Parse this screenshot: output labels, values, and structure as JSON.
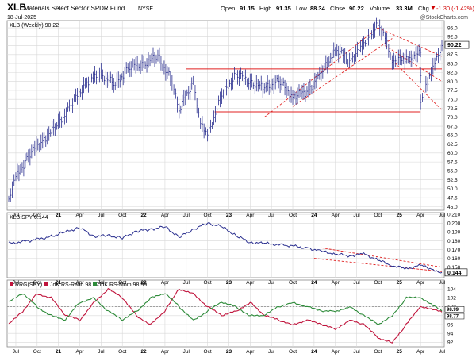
{
  "header": {
    "symbol": "XLB",
    "name": "Materials Select Sector SPDR Fund",
    "exchange": "NYSE",
    "date": "18-Jul-2025",
    "open_label": "Open",
    "open": "91.15",
    "high_label": "High",
    "high": "91.35",
    "low_label": "Low",
    "low": "88.34",
    "close_label": "Close",
    "close": "90.22",
    "volume_label": "Volume",
    "volume": "33.3M",
    "chg_label": "Chg",
    "chg": "-1.30 (-1.42%)",
    "chg_icon": "down-arrow-icon",
    "watermark": "@StockCharts.com"
  },
  "colors": {
    "price": "#2a2f8f",
    "trend": "#e02020",
    "rs_ratio": "#c0143c",
    "rs_mom": "#2e8b3a",
    "grid": "#d8d8d8"
  },
  "chart_data": [
    {
      "type": "line",
      "panel": "price",
      "legend": "XLB (Weekly) 90.22",
      "last_value": "90.22",
      "ylim": [
        44,
        97
      ],
      "y_ticks": [
        "95.0",
        "92.5",
        "90.0",
        "87.5",
        "85.0",
        "82.5",
        "80.0",
        "77.5",
        "75.0",
        "72.5",
        "70.0",
        "67.5",
        "65.0",
        "62.5",
        "60.0",
        "57.5",
        "55.0",
        "52.5",
        "50.0",
        "47.5",
        "45.0"
      ],
      "x_start": "2020-06",
      "x_end": "2025-07",
      "x": [
        "2020-06",
        "2020-07",
        "2020-09",
        "2020-11",
        "2021-01",
        "2021-03",
        "2021-05",
        "2021-07",
        "2021-09",
        "2021-11",
        "2022-01",
        "2022-03",
        "2022-05",
        "2022-06",
        "2022-08",
        "2022-09",
        "2022-10",
        "2022-12",
        "2023-02",
        "2023-04",
        "2023-06",
        "2023-08",
        "2023-10",
        "2023-12",
        "2024-02",
        "2024-04",
        "2024-06",
        "2024-08",
        "2024-10",
        "2024-11",
        "2024-12",
        "2025-02",
        "2025-04",
        "2025-04",
        "2025-05",
        "2025-06",
        "2025-07"
      ],
      "values": [
        46,
        53,
        60,
        64,
        68,
        74,
        80,
        82,
        79,
        84,
        85,
        87,
        80,
        72,
        80,
        68,
        65,
        76,
        82,
        80,
        78,
        80,
        76,
        77,
        82,
        89,
        86,
        90,
        96,
        93,
        86,
        86,
        88,
        74,
        80,
        86,
        90
      ],
      "annotations": [
        {
          "type": "hline",
          "y": 83.5,
          "x": [
            "2022-07",
            "2025-07"
          ]
        },
        {
          "type": "hline",
          "y": 71.5,
          "x": [
            "2022-11",
            "2025-04"
          ]
        },
        {
          "type": "trendline",
          "from": [
            "2023-06",
            70
          ],
          "to": [
            "2024-10",
            95
          ]
        },
        {
          "type": "trendline",
          "from": [
            "2023-10",
            73
          ],
          "to": [
            "2024-12",
            92
          ]
        },
        {
          "type": "trendline",
          "from": [
            "2024-10",
            95
          ],
          "to": [
            "2025-07",
            87
          ]
        },
        {
          "type": "trendline",
          "from": [
            "2024-11",
            90
          ],
          "to": [
            "2025-07",
            80
          ]
        },
        {
          "type": "trendline",
          "from": [
            "2024-12",
            86
          ],
          "to": [
            "2025-07",
            72
          ]
        }
      ]
    },
    {
      "type": "line",
      "panel": "rs",
      "legend": "XLB:SPY 0.144",
      "last_value": "0.144",
      "ylim": [
        0.138,
        0.212
      ],
      "y_ticks": [
        "0.210",
        "0.200",
        "0.190",
        "0.180",
        "0.170",
        "0.160",
        "0.150"
      ],
      "x": [
        "2020-06",
        "2020-09",
        "2020-12",
        "2021-02",
        "2021-04",
        "2021-06",
        "2021-08",
        "2021-10",
        "2021-12",
        "2022-02",
        "2022-04",
        "2022-06",
        "2022-08",
        "2022-10",
        "2022-12",
        "2023-02",
        "2023-04",
        "2023-06",
        "2023-09",
        "2023-12",
        "2024-02",
        "2024-04",
        "2024-06",
        "2024-08",
        "2024-10",
        "2024-12",
        "2025-02",
        "2025-04",
        "2025-06",
        "2025-07"
      ],
      "values": [
        0.177,
        0.18,
        0.185,
        0.19,
        0.195,
        0.185,
        0.186,
        0.183,
        0.191,
        0.193,
        0.196,
        0.184,
        0.193,
        0.2,
        0.196,
        0.186,
        0.178,
        0.177,
        0.175,
        0.172,
        0.168,
        0.165,
        0.163,
        0.165,
        0.158,
        0.152,
        0.148,
        0.152,
        0.147,
        0.144
      ],
      "annotations": [
        {
          "type": "trendline",
          "from": [
            "2024-01",
            0.16
          ],
          "to": [
            "2025-07",
            0.145
          ]
        },
        {
          "type": "trendline",
          "from": [
            "2024-02",
            0.172
          ],
          "to": [
            "2025-07",
            0.15
          ]
        }
      ]
    },
    {
      "type": "line",
      "panel": "rrg",
      "legend_prefix": "RRG(SPY)",
      "ylim": [
        91,
        106
      ],
      "y_ticks": [
        "104",
        "102",
        "100",
        "98",
        "96",
        "94",
        "92"
      ],
      "reference_line": 100,
      "series": [
        {
          "name": "JdK RS-Ratio 98.77",
          "last_value": "98.77",
          "values": [
            96,
            99,
            103,
            102,
            98,
            97,
            101,
            104,
            102,
            98,
            96,
            99,
            104,
            103,
            100,
            98,
            99,
            101,
            98,
            97,
            96,
            97,
            96,
            95,
            97,
            96,
            93,
            92,
            96,
            100,
            98.8
          ]
        },
        {
          "name": "JdK RS-Mom 98.99",
          "last_value": "98.99",
          "values": [
            101,
            103,
            100,
            98,
            97,
            101,
            102,
            99,
            97,
            99,
            102,
            103,
            100,
            97,
            99,
            101,
            100,
            98,
            98,
            100,
            101,
            100,
            99,
            99,
            100,
            98,
            96,
            98,
            102,
            102,
            99
          ]
        }
      ],
      "x": [
        "2020-06",
        "2020-08",
        "2020-10",
        "2020-12",
        "2021-02",
        "2021-04",
        "2021-06",
        "2021-08",
        "2021-10",
        "2021-12",
        "2022-02",
        "2022-04",
        "2022-06",
        "2022-08",
        "2022-10",
        "2022-12",
        "2023-02",
        "2023-04",
        "2023-06",
        "2023-08",
        "2023-10",
        "2023-12",
        "2024-02",
        "2024-04",
        "2024-06",
        "2024-08",
        "2024-10",
        "2024-12",
        "2025-02",
        "2025-04",
        "2025-07"
      ]
    }
  ],
  "x_axis": {
    "labels": [
      {
        "text": "Jul",
        "t": "2020-07"
      },
      {
        "text": "Oct",
        "t": "2020-10"
      },
      {
        "text": "21",
        "t": "2021-01"
      },
      {
        "text": "Apr",
        "t": "2021-04"
      },
      {
        "text": "Jul",
        "t": "2021-07"
      },
      {
        "text": "Oct",
        "t": "2021-10"
      },
      {
        "text": "22",
        "t": "2022-01"
      },
      {
        "text": "Apr",
        "t": "2022-04"
      },
      {
        "text": "Jul",
        "t": "2022-07"
      },
      {
        "text": "Oct",
        "t": "2022-10"
      },
      {
        "text": "23",
        "t": "2023-01"
      },
      {
        "text": "Apr",
        "t": "2023-04"
      },
      {
        "text": "Jul",
        "t": "2023-07"
      },
      {
        "text": "Oct",
        "t": "2023-10"
      },
      {
        "text": "24",
        "t": "2024-01"
      },
      {
        "text": "Apr",
        "t": "2024-04"
      },
      {
        "text": "Jul",
        "t": "2024-07"
      },
      {
        "text": "Oct",
        "t": "2024-10"
      },
      {
        "text": "25",
        "t": "2025-01"
      },
      {
        "text": "Apr",
        "t": "2025-04"
      },
      {
        "text": "Jul",
        "t": "2025-07"
      }
    ]
  }
}
